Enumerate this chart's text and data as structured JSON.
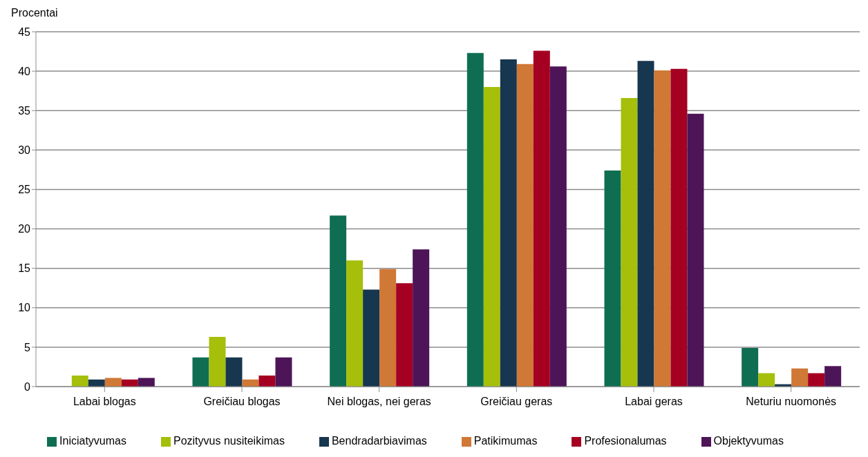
{
  "chart_data": {
    "type": "bar",
    "ylabel": "Procentai",
    "categories": [
      "Labai blogas",
      "Greičiau blogas",
      "Nei blogas, nei geras",
      "Greičiau geras",
      "Labai geras",
      "Neturiu nuomonės"
    ],
    "series": [
      {
        "name": "Iniciatyvumas",
        "color": "#0f6e52",
        "values": [
          0,
          3.7,
          21.7,
          42.3,
          27.4,
          4.9
        ]
      },
      {
        "name": "Pozityvus nusiteikimas",
        "color": "#a5bf0a",
        "values": [
          1.4,
          6.3,
          16.0,
          38.0,
          36.6,
          1.7
        ]
      },
      {
        "name": "Bendradarbiavimas",
        "color": "#17364f",
        "values": [
          0.9,
          3.7,
          12.3,
          41.5,
          41.3,
          0.3
        ]
      },
      {
        "name": "Patikimumas",
        "color": "#d07835",
        "values": [
          1.1,
          0.9,
          14.9,
          40.9,
          40.1,
          2.3
        ]
      },
      {
        "name": "Profesionalumas",
        "color": "#a50022",
        "values": [
          0.9,
          1.4,
          13.1,
          42.6,
          40.3,
          1.7
        ]
      },
      {
        "name": "Objektyvumas",
        "color": "#4d1557",
        "values": [
          1.1,
          3.7,
          17.4,
          40.6,
          34.6,
          2.6
        ]
      }
    ],
    "ylim": [
      0,
      45
    ],
    "yticks": [
      0,
      5,
      10,
      15,
      20,
      25,
      30,
      35,
      40,
      45
    ],
    "grid": "y",
    "legend": "bottom"
  }
}
